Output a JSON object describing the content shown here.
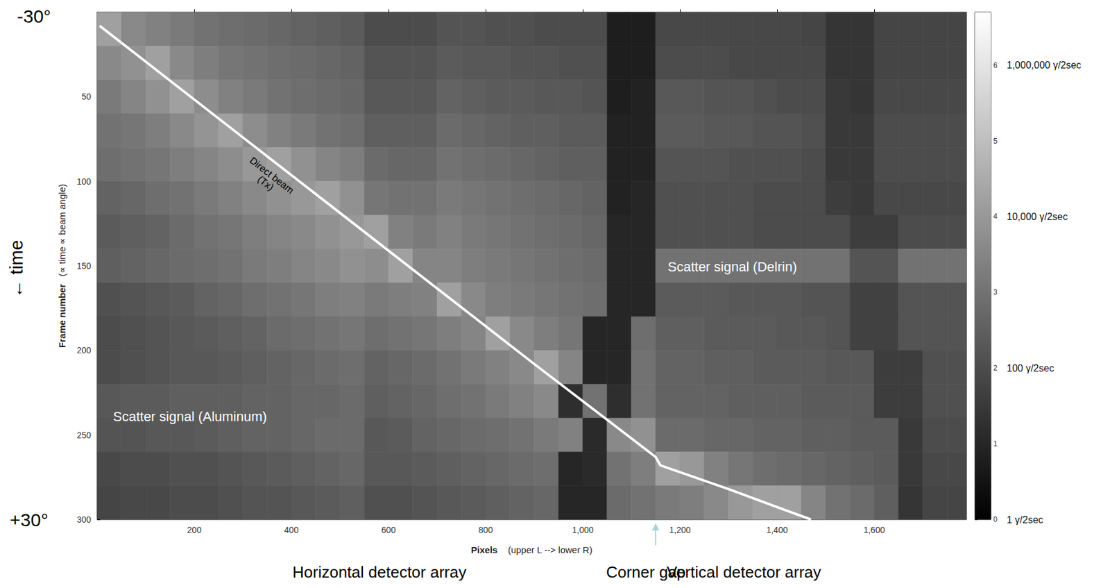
{
  "chart_data": {
    "type": "heatmap",
    "xlabel": "Pixels    (upper L --> lower R)",
    "ylabel": "Frame number   (∝ time ∝ beam angle)",
    "xlim": [
      0,
      1790
    ],
    "xticks": [
      200,
      400,
      600,
      800,
      1000,
      1200,
      1400,
      1600
    ],
    "ylim": [
      300,
      0
    ],
    "yticks": [
      50,
      100,
      150,
      200,
      250,
      300
    ],
    "grid": false,
    "x_edges": [
      0,
      50,
      100,
      150,
      200,
      250,
      300,
      350,
      400,
      450,
      500,
      550,
      600,
      650,
      700,
      750,
      800,
      850,
      900,
      950,
      1000,
      1050,
      1100,
      1150,
      1200,
      1250,
      1300,
      1350,
      1400,
      1450,
      1500,
      1550,
      1600,
      1650,
      1700,
      1750,
      1790
    ],
    "y_edges": [
      0,
      20,
      40,
      60,
      80,
      100,
      120,
      140,
      160,
      180,
      200,
      220,
      240,
      260,
      280,
      300
    ],
    "cells": [
      [
        4.2,
        3.6,
        3.4,
        3.2,
        3.0,
        2.9,
        2.8,
        2.7,
        2.6,
        2.5,
        2.4,
        2.0,
        2.0,
        2.0,
        2.2,
        2.2,
        2.1,
        2.1,
        2.0,
        2.0,
        2.0,
        0.8,
        0.8,
        1.9,
        1.9,
        1.9,
        1.9,
        1.9,
        1.9,
        1.8,
        1.4,
        1.4,
        1.8,
        1.8,
        1.8,
        1.8
      ],
      [
        3.6,
        3.8,
        4.2,
        3.6,
        3.3,
        3.1,
        3.0,
        2.9,
        2.8,
        2.7,
        2.6,
        2.2,
        2.2,
        2.2,
        2.4,
        2.3,
        2.3,
        2.2,
        2.2,
        2.1,
        2.1,
        0.8,
        0.8,
        2.0,
        2.0,
        2.0,
        1.9,
        1.9,
        1.9,
        1.9,
        1.4,
        1.4,
        1.8,
        1.8,
        1.8,
        1.8
      ],
      [
        3.2,
        3.5,
        3.8,
        4.2,
        3.7,
        3.4,
        3.2,
        3.0,
        2.9,
        2.8,
        2.7,
        2.3,
        2.3,
        2.3,
        2.6,
        2.5,
        2.4,
        2.4,
        2.3,
        2.3,
        2.2,
        0.8,
        0.9,
        2.3,
        2.3,
        2.2,
        2.2,
        2.1,
        2.0,
        2.0,
        1.5,
        1.4,
        1.9,
        1.9,
        1.9,
        1.9
      ],
      [
        3.0,
        3.1,
        3.3,
        3.6,
        3.9,
        4.2,
        3.7,
        3.4,
        3.2,
        3.0,
        2.9,
        2.5,
        2.5,
        2.5,
        2.8,
        2.7,
        2.6,
        2.5,
        2.5,
        2.4,
        2.4,
        0.9,
        0.9,
        2.4,
        2.4,
        2.3,
        2.3,
        2.2,
        2.2,
        2.1,
        1.5,
        1.5,
        2.0,
        2.0,
        2.0,
        2.0
      ],
      [
        2.9,
        3.0,
        3.1,
        3.3,
        3.5,
        3.7,
        4.0,
        4.2,
        3.8,
        3.5,
        3.3,
        2.8,
        2.7,
        2.7,
        3.0,
        2.9,
        2.8,
        2.7,
        2.6,
        2.5,
        2.5,
        0.9,
        0.9,
        2.2,
        2.2,
        2.2,
        2.1,
        2.1,
        2.1,
        2.0,
        1.5,
        1.5,
        2.0,
        2.0,
        2.0,
        2.0
      ],
      [
        2.6,
        2.7,
        2.9,
        3.0,
        3.2,
        3.4,
        3.6,
        3.8,
        4.0,
        4.2,
        3.8,
        3.1,
        3.0,
        3.0,
        3.2,
        3.1,
        3.0,
        2.9,
        2.8,
        2.7,
        2.6,
        0.9,
        1.0,
        2.1,
        2.1,
        2.1,
        2.1,
        2.0,
        2.0,
        2.0,
        1.6,
        1.5,
        1.9,
        1.9,
        1.9,
        1.9
      ],
      [
        2.4,
        2.5,
        2.6,
        2.8,
        3.0,
        3.1,
        3.3,
        3.5,
        3.6,
        3.8,
        4.0,
        4.2,
        3.4,
        3.2,
        3.4,
        3.2,
        3.1,
        3.0,
        2.9,
        2.8,
        2.7,
        1.0,
        1.0,
        2.1,
        2.1,
        2.1,
        2.1,
        2.0,
        2.0,
        2.0,
        2.0,
        1.6,
        1.6,
        2.0,
        2.0,
        2.0
      ],
      [
        2.5,
        2.6,
        2.7,
        2.8,
        2.9,
        3.0,
        3.2,
        3.3,
        3.5,
        3.6,
        3.8,
        3.7,
        4.2,
        3.5,
        3.5,
        3.3,
        3.2,
        3.1,
        3.0,
        2.9,
        2.8,
        1.0,
        1.0,
        3.0,
        3.0,
        3.0,
        3.0,
        3.0,
        3.0,
        3.0,
        3.0,
        2.2,
        2.2,
        3.0,
        3.0,
        3.0
      ],
      [
        2.1,
        2.2,
        2.3,
        2.4,
        2.6,
        2.7,
        2.9,
        3.0,
        3.1,
        3.3,
        3.4,
        3.2,
        3.3,
        3.4,
        4.2,
        3.6,
        3.3,
        3.2,
        3.1,
        3.0,
        2.9,
        1.0,
        1.0,
        2.4,
        2.4,
        2.4,
        2.3,
        2.3,
        2.3,
        2.2,
        2.2,
        1.7,
        1.7,
        2.2,
        2.2,
        2.2
      ],
      [
        2.0,
        2.1,
        2.2,
        2.3,
        2.4,
        2.5,
        2.6,
        2.8,
        2.9,
        3.0,
        3.1,
        2.9,
        3.0,
        3.1,
        3.3,
        3.5,
        4.2,
        3.6,
        3.3,
        3.1,
        1.0,
        1.0,
        2.9,
        2.5,
        2.5,
        2.4,
        2.4,
        2.4,
        2.3,
        2.3,
        2.2,
        1.7,
        1.7,
        2.2,
        2.2,
        2.2
      ],
      [
        2.0,
        2.1,
        2.2,
        2.3,
        2.3,
        2.4,
        2.5,
        2.6,
        2.7,
        2.8,
        2.9,
        2.6,
        2.7,
        2.8,
        3.0,
        3.2,
        3.4,
        3.6,
        4.2,
        3.5,
        1.0,
        1.0,
        3.0,
        2.6,
        2.6,
        2.5,
        2.5,
        2.4,
        2.4,
        2.4,
        2.3,
        2.3,
        1.6,
        1.6,
        2.1,
        2.1
      ],
      [
        2.3,
        2.4,
        2.4,
        2.5,
        2.5,
        2.5,
        2.6,
        2.6,
        2.7,
        2.7,
        2.8,
        2.5,
        2.6,
        2.7,
        2.9,
        3.0,
        3.2,
        3.4,
        3.6,
        1.2,
        3.0,
        1.2,
        3.0,
        2.6,
        2.6,
        2.6,
        2.5,
        2.5,
        2.5,
        2.4,
        2.4,
        2.4,
        1.6,
        1.6,
        2.1,
        2.1
      ],
      [
        2.2,
        2.2,
        2.3,
        2.3,
        2.4,
        2.5,
        2.6,
        2.6,
        2.7,
        2.8,
        2.8,
        2.3,
        2.4,
        2.6,
        2.7,
        2.8,
        2.9,
        3.0,
        3.2,
        3.4,
        1.1,
        3.6,
        3.8,
        2.8,
        2.8,
        2.7,
        2.7,
        2.6,
        2.6,
        2.5,
        2.5,
        2.4,
        2.4,
        1.5,
        2.0,
        2.0
      ],
      [
        1.9,
        2.0,
        2.0,
        2.1,
        2.1,
        2.2,
        2.3,
        2.4,
        2.5,
        2.6,
        2.7,
        2.3,
        2.3,
        2.4,
        2.5,
        2.6,
        2.7,
        2.8,
        2.9,
        1.0,
        1.1,
        3.0,
        3.3,
        4.2,
        4.0,
        3.4,
        3.1,
        2.9,
        2.8,
        2.7,
        2.6,
        2.5,
        2.4,
        1.5,
        1.9,
        1.9
      ],
      [
        1.8,
        1.9,
        1.9,
        2.0,
        2.0,
        2.1,
        2.2,
        2.2,
        2.3,
        2.4,
        2.5,
        2.1,
        2.1,
        2.2,
        2.3,
        2.4,
        2.5,
        2.6,
        2.7,
        1.0,
        1.0,
        2.8,
        3.0,
        3.2,
        3.3,
        3.6,
        4.0,
        4.2,
        4.2,
        3.5,
        3.0,
        2.8,
        2.5,
        1.4,
        1.8,
        1.8
      ]
    ],
    "colorbar": {
      "range": [
        0,
        6.7
      ],
      "ticks": [
        0,
        1,
        2,
        3,
        4,
        5,
        6
      ],
      "labels": [
        {
          "value": 6,
          "label": "1,000,000 γ/2sec"
        },
        {
          "value": 4,
          "label": "10,000 γ/2sec"
        },
        {
          "value": 2,
          "label": "100 γ/2sec"
        },
        {
          "value": 0,
          "label": "1 γ/2sec"
        }
      ],
      "colors": [
        "#000000",
        "#ffffff"
      ]
    },
    "series": [
      {
        "name": "Direct beam (Tx)",
        "type": "line",
        "color": "#ffffff",
        "x": [
          5,
          300,
          600,
          900,
          1150,
          1160,
          1300,
          1470
        ],
        "y": [
          8,
          74,
          141,
          208,
          263,
          268,
          282,
          300
        ]
      }
    ],
    "annotations": {
      "top_angle": "-30°",
      "bottom_angle": "+30°",
      "time": "← time",
      "delrin": "Scatter signal (Delrin)",
      "aluminum": "Scatter signal (Aluminum)",
      "horizontal": "Horizontal detector array",
      "corner_gap": "Corner gap",
      "vertical": "Vertical detector array"
    },
    "corner_gap_pixel": 1150
  }
}
